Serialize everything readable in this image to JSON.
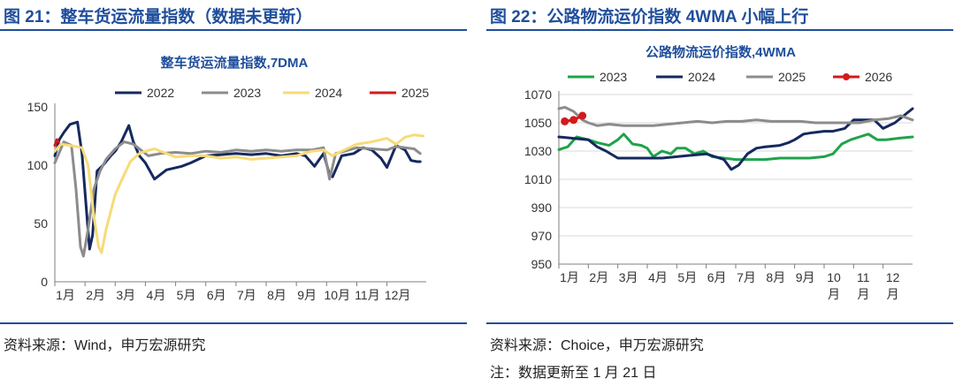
{
  "left": {
    "figure_title": "图 21：整车货运流量指数（数据未更新）",
    "source": "资料来源：Wind，申万宏源研究"
  },
  "right": {
    "figure_title": "图 22：公路物流运价指数 4WMA 小幅上行",
    "source": "资料来源：Choice，申万宏源研究",
    "note": "注：数据更新至 1 月 21 日"
  },
  "chart_data": [
    {
      "type": "line",
      "title": "整车货运流量指数,7DMA",
      "xlabel": "",
      "ylabel": "",
      "ylim": [
        0,
        150
      ],
      "yticks": [
        0,
        50,
        100,
        150
      ],
      "x_tick_labels": [
        "1月",
        "2月",
        "3月",
        "4月",
        "5月",
        "6月",
        "7月",
        "8月",
        "9月",
        "10月",
        "11月",
        "12月"
      ],
      "x_tick_positions": [
        1,
        2,
        3,
        4,
        5,
        6,
        7,
        8,
        9,
        10,
        11,
        12
      ],
      "xlim": [
        1,
        13.3
      ],
      "legend": "top",
      "grid": false,
      "series": [
        {
          "name": "2022",
          "color": "#15295e",
          "points": [
            [
              1,
              108
            ],
            [
              1.15,
              122
            ],
            [
              1.3,
              128
            ],
            [
              1.5,
              135
            ],
            [
              1.75,
              137
            ],
            [
              1.9,
              110
            ],
            [
              2.05,
              60
            ],
            [
              2.15,
              28
            ],
            [
              2.25,
              40
            ],
            [
              2.4,
              95
            ],
            [
              2.6,
              100
            ],
            [
              2.85,
              108
            ],
            [
              3.0,
              112
            ],
            [
              3.2,
              120
            ],
            [
              3.45,
              134
            ],
            [
              3.6,
              120
            ],
            [
              3.8,
              108
            ],
            [
              4.0,
              102
            ],
            [
              4.3,
              88
            ],
            [
              4.7,
              96
            ],
            [
              5.2,
              99
            ],
            [
              5.5,
              102
            ],
            [
              6.0,
              108
            ],
            [
              6.5,
              109
            ],
            [
              7.0,
              110
            ],
            [
              7.5,
              109
            ],
            [
              8.0,
              110
            ],
            [
              8.5,
              108
            ],
            [
              9.0,
              110
            ],
            [
              9.3,
              108
            ],
            [
              9.6,
              99
            ],
            [
              9.9,
              110
            ],
            [
              10.1,
              92
            ],
            [
              10.2,
              90
            ],
            [
              10.5,
              108
            ],
            [
              10.9,
              110
            ],
            [
              11.2,
              115
            ],
            [
              11.5,
              113
            ],
            [
              11.8,
              106
            ],
            [
              12.0,
              98
            ],
            [
              12.3,
              117
            ],
            [
              12.6,
              113
            ],
            [
              12.8,
              104
            ],
            [
              13.0,
              103
            ],
            [
              13.1,
              103
            ]
          ]
        },
        {
          "name": "2023",
          "color": "#8c8c8c",
          "points": [
            [
              1,
              102
            ],
            [
              1.3,
              120
            ],
            [
              1.55,
              117
            ],
            [
              1.7,
              80
            ],
            [
              1.85,
              30
            ],
            [
              1.95,
              22
            ],
            [
              2.1,
              45
            ],
            [
              2.3,
              80
            ],
            [
              2.5,
              95
            ],
            [
              2.7,
              105
            ],
            [
              3.0,
              114
            ],
            [
              3.3,
              120
            ],
            [
              3.6,
              118
            ],
            [
              3.9,
              112
            ],
            [
              4.1,
              108
            ],
            [
              4.5,
              110
            ],
            [
              5.0,
              111
            ],
            [
              5.5,
              110
            ],
            [
              6.0,
              112
            ],
            [
              6.5,
              111
            ],
            [
              7.0,
              113
            ],
            [
              7.5,
              112
            ],
            [
              8.0,
              113
            ],
            [
              8.5,
              112
            ],
            [
              9.0,
              113
            ],
            [
              9.5,
              113
            ],
            [
              9.9,
              115
            ],
            [
              10.1,
              88
            ],
            [
              10.3,
              110
            ],
            [
              10.6,
              112
            ],
            [
              11.0,
              115
            ],
            [
              11.5,
              114
            ],
            [
              12.0,
              113
            ],
            [
              12.3,
              116
            ],
            [
              12.6,
              115
            ],
            [
              12.9,
              114
            ],
            [
              13.1,
              110
            ]
          ]
        },
        {
          "name": "2024",
          "color": "#f7db77",
          "points": [
            [
              1,
              112
            ],
            [
              1.2,
              118
            ],
            [
              1.5,
              117
            ],
            [
              1.9,
              115
            ],
            [
              2.1,
              100
            ],
            [
              2.3,
              55
            ],
            [
              2.45,
              30
            ],
            [
              2.55,
              25
            ],
            [
              2.7,
              45
            ],
            [
              3.0,
              75
            ],
            [
              3.3,
              92
            ],
            [
              3.5,
              103
            ],
            [
              3.8,
              110
            ],
            [
              4.0,
              112
            ],
            [
              4.3,
              114
            ],
            [
              4.7,
              110
            ],
            [
              5.0,
              107
            ],
            [
              5.5,
              108
            ],
            [
              6.0,
              108
            ],
            [
              6.5,
              106
            ],
            [
              7.0,
              107
            ],
            [
              7.5,
              105
            ],
            [
              8.0,
              106
            ],
            [
              8.5,
              107
            ],
            [
              9.0,
              108
            ],
            [
              9.5,
              112
            ],
            [
              9.9,
              113
            ],
            [
              10.2,
              108
            ],
            [
              10.5,
              112
            ],
            [
              11.0,
              118
            ],
            [
              11.5,
              120
            ],
            [
              12.0,
              123
            ],
            [
              12.3,
              118
            ],
            [
              12.6,
              124
            ],
            [
              12.9,
              126
            ],
            [
              13.2,
              125
            ]
          ]
        },
        {
          "name": "2025",
          "color": "#d41a1a",
          "points": [
            [
              1,
              117
            ],
            [
              1.07,
              122
            ],
            [
              1.12,
              120
            ]
          ]
        }
      ]
    },
    {
      "type": "line",
      "title": "公路物流运价指数,4WMA",
      "xlabel": "",
      "ylabel": "",
      "ylim": [
        950,
        1070
      ],
      "yticks": [
        950,
        970,
        990,
        1010,
        1030,
        1050,
        1070
      ],
      "x_tick_labels": [
        "1月",
        "2月",
        "3月",
        "4月",
        "5月",
        "6月",
        "7月",
        "8月",
        "9月",
        "10月",
        "11月",
        "12月"
      ],
      "x_tick_positions": [
        1,
        2,
        3,
        4,
        5,
        6,
        7,
        8,
        9,
        10,
        11,
        12
      ],
      "xlim": [
        1,
        13
      ],
      "legend": "top",
      "grid": true,
      "series": [
        {
          "name": "2023",
          "color": "#1fa34a",
          "points": [
            [
              1,
              1031
            ],
            [
              1.3,
              1033
            ],
            [
              1.6,
              1040
            ],
            [
              2.0,
              1038
            ],
            [
              2.3,
              1036
            ],
            [
              2.7,
              1034
            ],
            [
              3.0,
              1038
            ],
            [
              3.2,
              1042
            ],
            [
              3.5,
              1035
            ],
            [
              3.8,
              1034
            ],
            [
              4.0,
              1032
            ],
            [
              4.2,
              1026
            ],
            [
              4.5,
              1030
            ],
            [
              4.8,
              1028
            ],
            [
              5.0,
              1032
            ],
            [
              5.3,
              1032
            ],
            [
              5.6,
              1028
            ],
            [
              5.9,
              1030
            ],
            [
              6.2,
              1026
            ],
            [
              6.6,
              1025
            ],
            [
              7.0,
              1024
            ],
            [
              7.5,
              1024
            ],
            [
              8.0,
              1024
            ],
            [
              8.5,
              1025
            ],
            [
              9.0,
              1025
            ],
            [
              9.5,
              1025
            ],
            [
              10.0,
              1026
            ],
            [
              10.3,
              1028
            ],
            [
              10.6,
              1035
            ],
            [
              10.9,
              1038
            ],
            [
              11.2,
              1040
            ],
            [
              11.5,
              1042
            ],
            [
              11.8,
              1038
            ],
            [
              12.1,
              1038
            ],
            [
              12.5,
              1039
            ],
            [
              13.0,
              1040
            ]
          ]
        },
        {
          "name": "2024",
          "color": "#15295e",
          "points": [
            [
              1,
              1040
            ],
            [
              1.5,
              1039
            ],
            [
              2.0,
              1038
            ],
            [
              2.3,
              1033
            ],
            [
              2.6,
              1030
            ],
            [
              3.0,
              1025
            ],
            [
              3.5,
              1025
            ],
            [
              4.0,
              1025
            ],
            [
              4.5,
              1025
            ],
            [
              5.0,
              1026
            ],
            [
              5.5,
              1027
            ],
            [
              6.0,
              1028
            ],
            [
              6.3,
              1026
            ],
            [
              6.6,
              1024
            ],
            [
              6.85,
              1017
            ],
            [
              7.1,
              1020
            ],
            [
              7.4,
              1028
            ],
            [
              7.7,
              1032
            ],
            [
              8.0,
              1033
            ],
            [
              8.5,
              1034
            ],
            [
              8.8,
              1036
            ],
            [
              9.0,
              1038
            ],
            [
              9.3,
              1042
            ],
            [
              9.6,
              1043
            ],
            [
              10.0,
              1044
            ],
            [
              10.3,
              1044
            ],
            [
              10.7,
              1046
            ],
            [
              11.0,
              1052
            ],
            [
              11.4,
              1052
            ],
            [
              11.7,
              1052
            ],
            [
              12.0,
              1046
            ],
            [
              12.4,
              1050
            ],
            [
              12.7,
              1055
            ],
            [
              13.0,
              1060
            ]
          ]
        },
        {
          "name": "2025",
          "color": "#8c8c8c",
          "points": [
            [
              1,
              1060
            ],
            [
              1.2,
              1061
            ],
            [
              1.5,
              1058
            ],
            [
              1.8,
              1052
            ],
            [
              2.0,
              1050
            ],
            [
              2.3,
              1048
            ],
            [
              2.7,
              1049
            ],
            [
              3.2,
              1048
            ],
            [
              3.7,
              1048
            ],
            [
              4.2,
              1048
            ],
            [
              4.7,
              1049
            ],
            [
              5.2,
              1050
            ],
            [
              5.7,
              1051
            ],
            [
              6.2,
              1050
            ],
            [
              6.7,
              1051
            ],
            [
              7.2,
              1051
            ],
            [
              7.7,
              1052
            ],
            [
              8.2,
              1051
            ],
            [
              8.7,
              1051
            ],
            [
              9.2,
              1051
            ],
            [
              9.7,
              1050
            ],
            [
              10.2,
              1050
            ],
            [
              10.7,
              1050
            ],
            [
              11.2,
              1050
            ],
            [
              11.7,
              1052
            ],
            [
              12.2,
              1053
            ],
            [
              12.6,
              1055
            ],
            [
              13.0,
              1052
            ]
          ]
        },
        {
          "name": "2026",
          "color": "#d41a1a",
          "points": [
            [
              1.2,
              1051
            ],
            [
              1.5,
              1052
            ],
            [
              1.8,
              1055
            ]
          ]
        }
      ]
    }
  ]
}
